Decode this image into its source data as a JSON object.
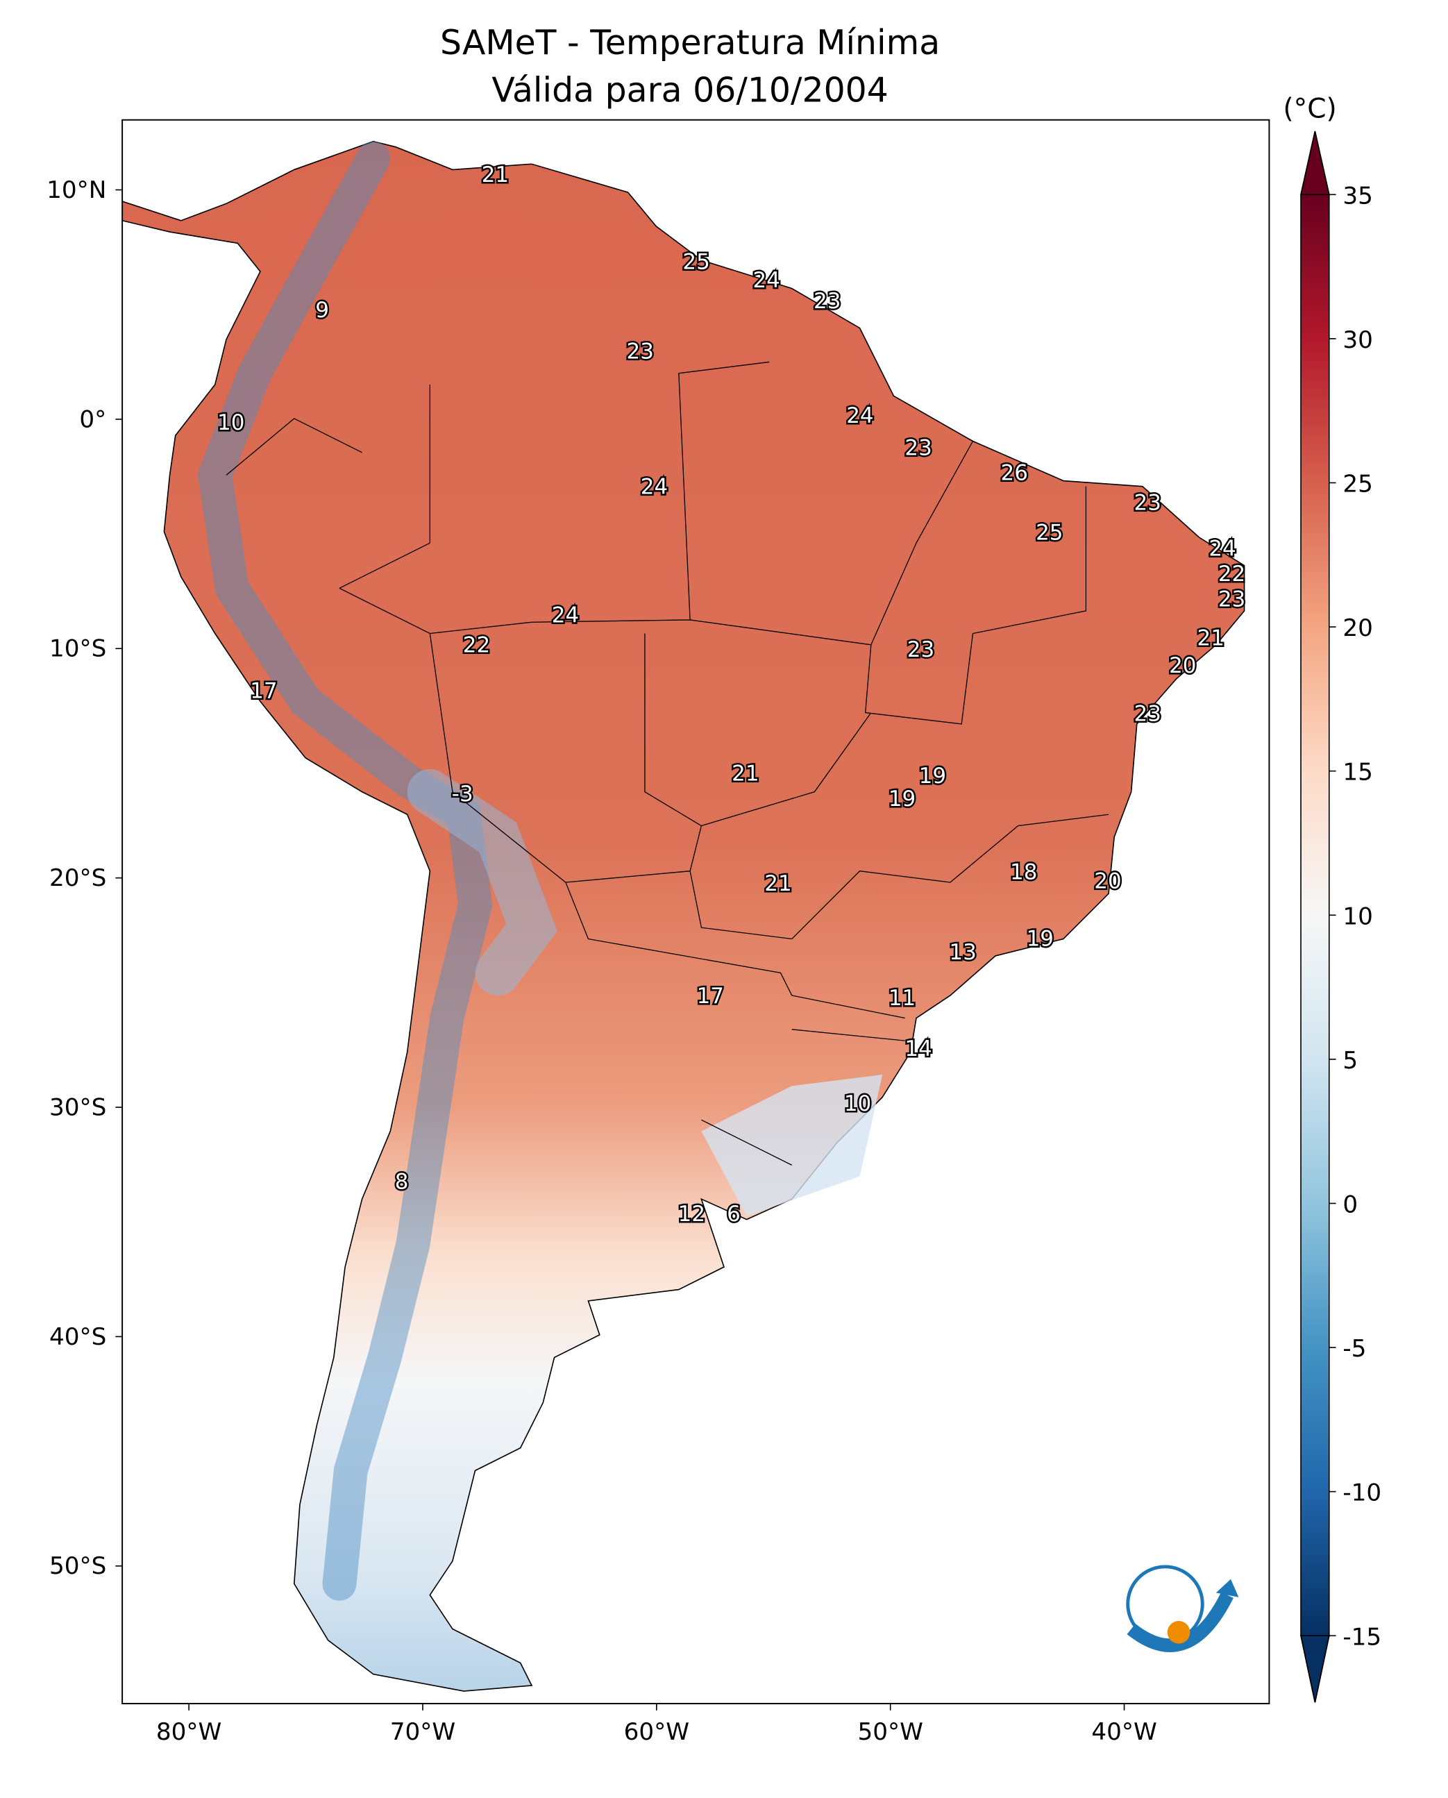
{
  "chart_data": {
    "type": "map",
    "title": [
      "SAMeT - Temperatura Mínima",
      "Válida para 06/10/2004"
    ],
    "xlim": [
      -82.85,
      -33.8
    ],
    "ylim": [
      -56.0,
      13.05
    ],
    "xticks": [
      {
        "value": -80,
        "label": "80°W"
      },
      {
        "value": -70,
        "label": "70°W"
      },
      {
        "value": -60,
        "label": "60°W"
      },
      {
        "value": -50,
        "label": "50°W"
      },
      {
        "value": -40,
        "label": "40°W"
      }
    ],
    "yticks": [
      {
        "value": 10,
        "label": "10°N"
      },
      {
        "value": 0,
        "label": "0°"
      },
      {
        "value": -10,
        "label": "10°S"
      },
      {
        "value": -20,
        "label": "20°S"
      },
      {
        "value": -30,
        "label": "30°S"
      },
      {
        "value": -40,
        "label": "40°S"
      },
      {
        "value": -50,
        "label": "50°S"
      }
    ],
    "points": [
      {
        "lon": -66.9,
        "lat": 10.6,
        "value": 21
      },
      {
        "lon": -58.3,
        "lat": 6.8,
        "value": 25
      },
      {
        "lon": -55.3,
        "lat": 6.0,
        "value": 24
      },
      {
        "lon": -52.7,
        "lat": 5.1,
        "value": 23
      },
      {
        "lon": -74.3,
        "lat": 4.7,
        "value": 9
      },
      {
        "lon": -60.7,
        "lat": 2.9,
        "value": 23
      },
      {
        "lon": -78.2,
        "lat": -0.2,
        "value": 10
      },
      {
        "lon": -51.3,
        "lat": 0.1,
        "value": 24
      },
      {
        "lon": -48.8,
        "lat": -1.3,
        "value": 23
      },
      {
        "lon": -44.7,
        "lat": -2.4,
        "value": 26
      },
      {
        "lon": -60.1,
        "lat": -3.0,
        "value": 24
      },
      {
        "lon": -39.0,
        "lat": -3.7,
        "value": 23
      },
      {
        "lon": -43.2,
        "lat": -5.0,
        "value": 25
      },
      {
        "lon": -35.8,
        "lat": -5.7,
        "value": 24
      },
      {
        "lon": -35.4,
        "lat": -6.8,
        "value": 22
      },
      {
        "lon": -35.4,
        "lat": -7.9,
        "value": 23
      },
      {
        "lon": -63.9,
        "lat": -8.6,
        "value": 24
      },
      {
        "lon": -36.3,
        "lat": -9.6,
        "value": 21
      },
      {
        "lon": -67.7,
        "lat": -9.9,
        "value": 22
      },
      {
        "lon": -48.7,
        "lat": -10.1,
        "value": 23
      },
      {
        "lon": -37.5,
        "lat": -10.8,
        "value": 20
      },
      {
        "lon": -76.8,
        "lat": -11.9,
        "value": 17
      },
      {
        "lon": -39.0,
        "lat": -12.9,
        "value": 23
      },
      {
        "lon": -56.2,
        "lat": -15.5,
        "value": 21
      },
      {
        "lon": -48.2,
        "lat": -15.6,
        "value": 19
      },
      {
        "lon": -68.3,
        "lat": -16.4,
        "value": -3
      },
      {
        "lon": -49.5,
        "lat": -16.6,
        "value": 19
      },
      {
        "lon": -44.3,
        "lat": -19.8,
        "value": 18
      },
      {
        "lon": -40.7,
        "lat": -20.2,
        "value": 20
      },
      {
        "lon": -54.8,
        "lat": -20.3,
        "value": 21
      },
      {
        "lon": -43.6,
        "lat": -22.7,
        "value": 19
      },
      {
        "lon": -46.9,
        "lat": -23.3,
        "value": 13
      },
      {
        "lon": -57.7,
        "lat": -25.2,
        "value": 17
      },
      {
        "lon": -49.5,
        "lat": -25.3,
        "value": 11
      },
      {
        "lon": -48.8,
        "lat": -27.5,
        "value": 14
      },
      {
        "lon": -51.4,
        "lat": -29.9,
        "value": 10
      },
      {
        "lon": -70.9,
        "lat": -33.3,
        "value": 8
      },
      {
        "lon": -58.5,
        "lat": -34.7,
        "value": 12
      },
      {
        "lon": -56.7,
        "lat": -34.7,
        "value": 6
      }
    ],
    "colorbar": {
      "label": "(°C)",
      "lim": [
        -15,
        35
      ],
      "ticks": [
        -15,
        -10,
        -5,
        0,
        5,
        10,
        15,
        20,
        25,
        30,
        35
      ],
      "colors": [
        "#053061",
        "#2166ac",
        "#4393c3",
        "#92c5de",
        "#d1e5f0",
        "#f7f7f7",
        "#fddbc7",
        "#f4a582",
        "#d6604d",
        "#b2182b",
        "#67001f"
      ]
    }
  }
}
